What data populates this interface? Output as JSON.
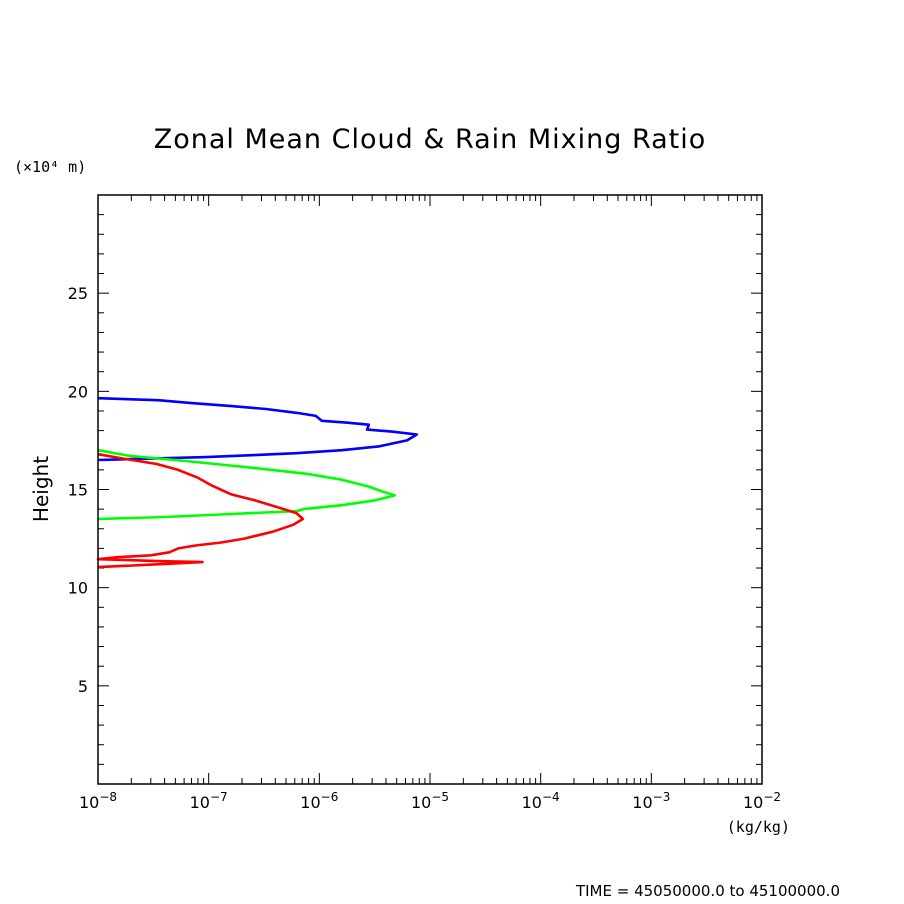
{
  "chart_data": {
    "type": "line",
    "title": "Zonal Mean Cloud & Rain Mixing Ratio",
    "ylabel": "Height",
    "yunit": "(×10⁴ m)",
    "xunit": "(kg/kg)",
    "footer": "TIME = 45050000.0 to 45100000.0",
    "xscale": "log",
    "xlim": [
      1e-08,
      0.01
    ],
    "ylim": [
      0,
      30
    ],
    "x_ticks": [
      {
        "value": 1e-08,
        "base": "10",
        "exp": "−8"
      },
      {
        "value": 1e-07,
        "base": "10",
        "exp": "−7"
      },
      {
        "value": 1e-06,
        "base": "10",
        "exp": "−6"
      },
      {
        "value": 1e-05,
        "base": "10",
        "exp": "−5"
      },
      {
        "value": 0.0001,
        "base": "10",
        "exp": "−4"
      },
      {
        "value": 0.001,
        "base": "10",
        "exp": "−3"
      },
      {
        "value": 0.01,
        "base": "10",
        "exp": "−2"
      }
    ],
    "y_ticks": [
      {
        "value": 5,
        "label": "5"
      },
      {
        "value": 10,
        "label": "10"
      },
      {
        "value": 15,
        "label": "15"
      },
      {
        "value": 20,
        "label": "20"
      },
      {
        "value": 25,
        "label": "25"
      }
    ],
    "series": [
      {
        "color": "#0000ff",
        "points": [
          [
            1e-08,
            19.65
          ],
          [
            3.5e-08,
            19.55
          ],
          [
            7e-08,
            19.4
          ],
          [
            1.6e-07,
            19.25
          ],
          [
            3.3e-07,
            19.1
          ],
          [
            6.3e-07,
            18.9
          ],
          [
            9.3e-07,
            18.75
          ],
          [
            1.05e-06,
            18.5
          ],
          [
            1.8e-06,
            18.4
          ],
          [
            2.8e-06,
            18.3
          ],
          [
            2.7e-06,
            18.05
          ],
          [
            4.5e-06,
            17.95
          ],
          [
            7.6e-06,
            17.8
          ],
          [
            6.2e-06,
            17.5
          ],
          [
            3.5e-06,
            17.2
          ],
          [
            1.6e-06,
            17.0
          ],
          [
            6.2e-07,
            16.85
          ],
          [
            2.6e-07,
            16.75
          ],
          [
            9.5e-08,
            16.65
          ],
          [
            1e-08,
            16.5
          ]
        ]
      },
      {
        "color": "#00ff00",
        "points": [
          [
            1e-08,
            17.0
          ],
          [
            2e-08,
            16.7
          ],
          [
            5e-08,
            16.5
          ],
          [
            1.15e-07,
            16.3
          ],
          [
            3.1e-07,
            16.05
          ],
          [
            7.7e-07,
            15.8
          ],
          [
            1.6e-06,
            15.5
          ],
          [
            2.8e-06,
            15.15
          ],
          [
            3.5e-06,
            14.95
          ],
          [
            4.8e-06,
            14.7
          ],
          [
            3.2e-06,
            14.45
          ],
          [
            1.6e-06,
            14.2
          ],
          [
            7.2e-07,
            14.0
          ],
          [
            6.3e-07,
            13.9
          ],
          [
            1.6e-07,
            13.75
          ],
          [
            4e-08,
            13.6
          ],
          [
            1e-08,
            13.5
          ]
        ]
      },
      {
        "color": "#ff0000",
        "points": [
          [
            1e-08,
            16.8
          ],
          [
            1.8e-08,
            16.55
          ],
          [
            3.4e-08,
            16.3
          ],
          [
            5.3e-08,
            16.0
          ],
          [
            8e-08,
            15.6
          ],
          [
            1.07e-07,
            15.2
          ],
          [
            1.6e-07,
            14.75
          ],
          [
            2.6e-07,
            14.45
          ],
          [
            4.2e-07,
            14.1
          ],
          [
            6.2e-07,
            13.8
          ],
          [
            7.1e-07,
            13.5
          ],
          [
            5.8e-07,
            13.2
          ],
          [
            3.8e-07,
            12.85
          ],
          [
            2.1e-07,
            12.5
          ],
          [
            1.3e-07,
            12.3
          ],
          [
            7.6e-08,
            12.15
          ],
          [
            5.3e-08,
            12.0
          ],
          [
            4.4e-08,
            11.8
          ],
          [
            3e-08,
            11.65
          ],
          [
            1.5e-08,
            11.55
          ],
          [
            1e-08,
            11.45
          ],
          [
            3.8e-08,
            11.35
          ],
          [
            8.8e-08,
            11.3
          ],
          [
            3.8e-08,
            11.2
          ],
          [
            1e-08,
            11.05
          ]
        ]
      }
    ]
  }
}
